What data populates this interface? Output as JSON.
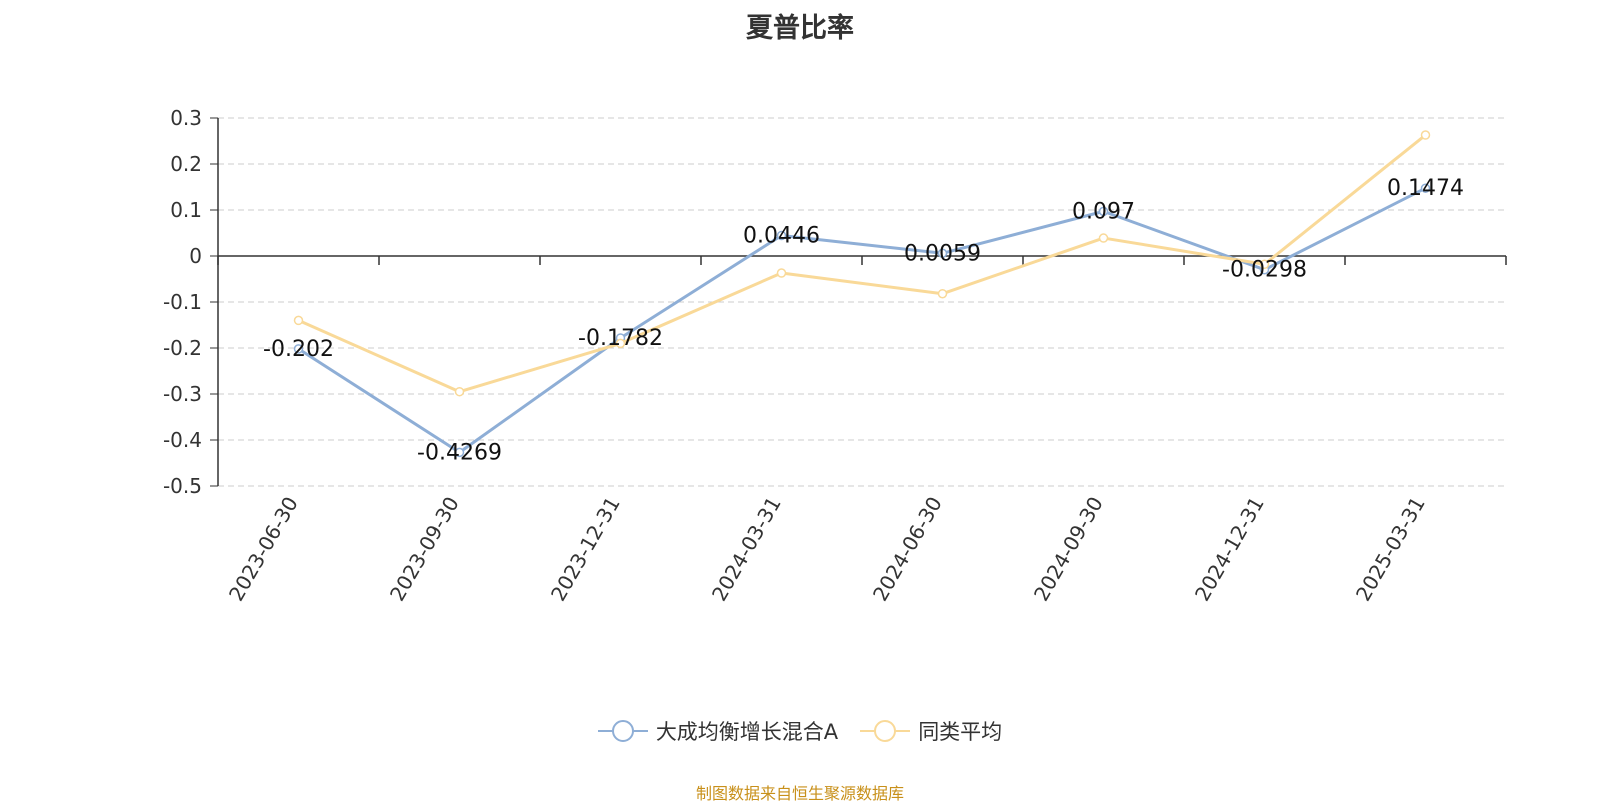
{
  "title": "夏普比率",
  "source_note": "制图数据来自恒生聚源数据库",
  "colors": {
    "series_1": "#8eaed6",
    "series_2": "#f9d998",
    "axis": "#333333",
    "grid": "#cccccc"
  },
  "chart_data": {
    "type": "line",
    "title": "夏普比率",
    "x": [
      "2023-06-30",
      "2023-09-30",
      "2023-12-31",
      "2024-03-31",
      "2024-06-30",
      "2024-09-30",
      "2024-12-31",
      "2025-03-31"
    ],
    "ylim": [
      -0.5,
      0.3
    ],
    "yticks": [
      0.3,
      0.2,
      0.1,
      0,
      -0.1,
      -0.2,
      -0.3,
      -0.4,
      -0.5
    ],
    "ytick_labels": [
      "0.3",
      "0.2",
      "0.1",
      "0",
      "-0.1",
      "-0.2",
      "-0.3",
      "-0.4",
      "-0.5"
    ],
    "grid": true,
    "legend_position": "bottom-center",
    "series": [
      {
        "name": "大成均衡增长混合A",
        "color": "#8eaed6",
        "values": [
          -0.202,
          -0.4269,
          -0.1782,
          0.0446,
          0.0059,
          0.097,
          -0.0298,
          0.1474
        ],
        "labels": [
          "-0.202",
          "-0.4269",
          "-0.1782",
          "0.0446",
          "0.0059",
          "0.097",
          "-0.0298",
          "0.1474"
        ]
      },
      {
        "name": "同类平均",
        "color": "#f9d998",
        "values": [
          -0.14,
          -0.295,
          -0.19,
          -0.037,
          -0.082,
          0.039,
          -0.018,
          0.263
        ]
      }
    ]
  }
}
